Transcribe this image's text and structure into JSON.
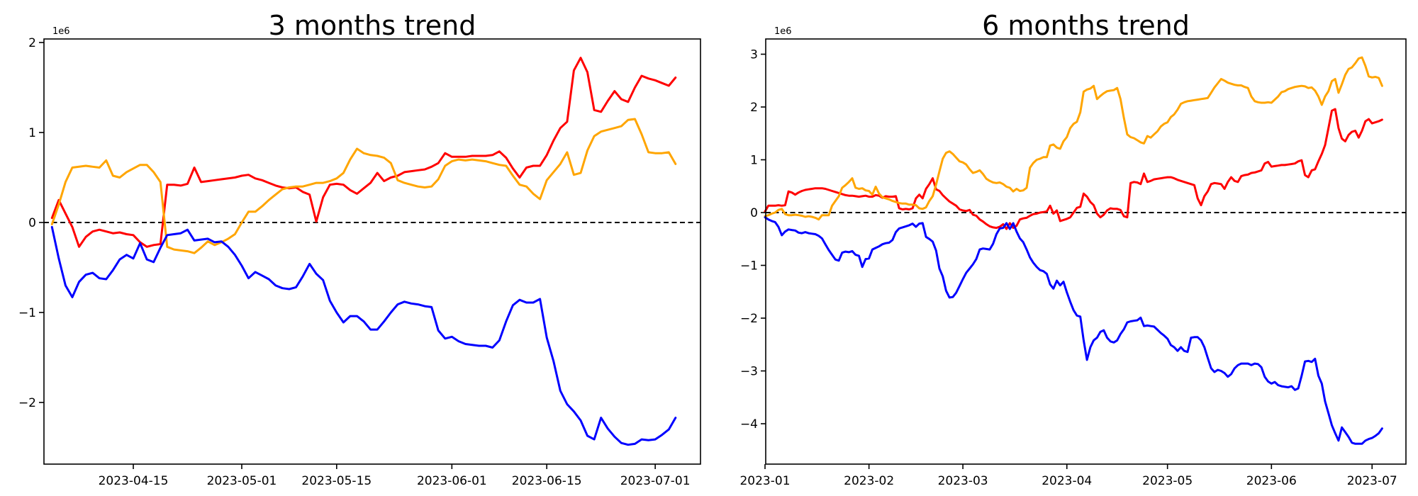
{
  "figure": {
    "background": "#ffffff"
  },
  "chart_data": [
    {
      "type": "line",
      "title": "3 months trend",
      "offset_label": "1e6",
      "x_start_date": "2023-04-03",
      "x_tick_labels": [
        "2023-04-15",
        "2023-05-01",
        "2023-05-15",
        "2023-06-01",
        "2023-06-15",
        "2023-07-01"
      ],
      "x_tick_days": [
        12,
        28,
        42,
        59,
        73,
        89
      ],
      "y_ticks": [
        2,
        1,
        0,
        -1,
        -2
      ],
      "y_tick_labels": [
        "2",
        "1",
        "0",
        "−1",
        "−2"
      ],
      "ylim": [
        -2.68,
        2.04
      ],
      "unit_scale": 1000000,
      "grid": false,
      "zero_line_dashed": true,
      "series": [
        {
          "name": "red",
          "color": "#ff0000",
          "values": [
            0.05,
            0.25,
            0.1,
            -0.05,
            -0.27,
            -0.16,
            -0.1,
            -0.08,
            -0.1,
            -0.12,
            -0.11,
            -0.13,
            -0.14,
            -0.22,
            -0.27,
            -0.25,
            -0.24,
            0.42,
            0.42,
            0.41,
            0.43,
            0.61,
            0.45,
            0.46,
            0.47,
            0.48,
            0.49,
            0.5,
            0.52,
            0.53,
            0.49,
            0.47,
            0.44,
            0.41,
            0.39,
            0.38,
            0.39,
            0.34,
            0.31,
            0.01,
            0.28,
            0.42,
            0.43,
            0.42,
            0.36,
            0.32,
            0.38,
            0.44,
            0.55,
            0.46,
            0.5,
            0.52,
            0.56,
            0.57,
            0.58,
            0.59,
            0.62,
            0.66,
            0.77,
            0.73,
            0.73,
            0.73,
            0.74,
            0.74,
            0.74,
            0.75,
            0.79,
            0.72,
            0.6,
            0.5,
            0.61,
            0.63,
            0.63,
            0.75,
            0.91,
            1.05,
            1.12,
            1.69,
            1.83,
            1.67,
            1.25,
            1.23,
            1.35,
            1.46,
            1.37,
            1.34,
            1.5,
            1.63,
            1.6,
            1.58,
            1.55,
            1.52,
            1.61
          ]
        },
        {
          "name": "orange",
          "color": "#ffa500",
          "values": [
            -0.02,
            0.2,
            0.45,
            0.61,
            0.62,
            0.63,
            0.62,
            0.61,
            0.69,
            0.52,
            0.5,
            0.56,
            0.6,
            0.64,
            0.64,
            0.56,
            0.45,
            -0.27,
            -0.3,
            -0.31,
            -0.32,
            -0.34,
            -0.28,
            -0.21,
            -0.25,
            -0.22,
            -0.18,
            -0.13,
            0.0,
            0.12,
            0.12,
            0.18,
            0.25,
            0.31,
            0.37,
            0.39,
            0.4,
            0.4,
            0.42,
            0.44,
            0.44,
            0.46,
            0.49,
            0.55,
            0.7,
            0.82,
            0.77,
            0.75,
            0.74,
            0.72,
            0.66,
            0.47,
            0.44,
            0.42,
            0.4,
            0.39,
            0.4,
            0.48,
            0.63,
            0.68,
            0.7,
            0.69,
            0.7,
            0.69,
            0.68,
            0.66,
            0.64,
            0.63,
            0.52,
            0.42,
            0.4,
            0.32,
            0.26,
            0.47,
            0.56,
            0.65,
            0.78,
            0.53,
            0.55,
            0.8,
            0.96,
            1.01,
            1.03,
            1.05,
            1.07,
            1.14,
            1.15,
            0.98,
            0.78,
            0.77,
            0.77,
            0.78,
            0.65
          ]
        },
        {
          "name": "blue",
          "color": "#0000ff",
          "values": [
            -0.05,
            -0.4,
            -0.7,
            -0.83,
            -0.66,
            -0.58,
            -0.56,
            -0.62,
            -0.63,
            -0.53,
            -0.41,
            -0.36,
            -0.4,
            -0.23,
            -0.41,
            -0.44,
            -0.28,
            -0.14,
            -0.13,
            -0.12,
            -0.08,
            -0.2,
            -0.19,
            -0.18,
            -0.22,
            -0.21,
            -0.27,
            -0.36,
            -0.48,
            -0.62,
            -0.55,
            -0.59,
            -0.63,
            -0.7,
            -0.73,
            -0.74,
            -0.72,
            -0.6,
            -0.46,
            -0.57,
            -0.64,
            -0.87,
            -1.0,
            -1.11,
            -1.04,
            -1.04,
            -1.1,
            -1.19,
            -1.19,
            -1.1,
            -1.0,
            -0.91,
            -0.88,
            -0.9,
            -0.91,
            -0.93,
            -0.94,
            -1.2,
            -1.29,
            -1.27,
            -1.32,
            -1.35,
            -1.36,
            -1.37,
            -1.37,
            -1.39,
            -1.31,
            -1.1,
            -0.92,
            -0.86,
            -0.89,
            -0.89,
            -0.85,
            -1.28,
            -1.54,
            -1.87,
            -2.02,
            -2.1,
            -2.2,
            -2.37,
            -2.41,
            -2.17,
            -2.29,
            -2.38,
            -2.45,
            -2.47,
            -2.46,
            -2.41,
            -2.42,
            -2.41,
            -2.36,
            -2.3,
            -2.17
          ]
        }
      ]
    },
    {
      "type": "line",
      "title": "6 months trend",
      "offset_label": "1e6",
      "x_start_date": "2023-01-01",
      "x_tick_labels": [
        "2023-01",
        "2023-02",
        "2023-03",
        "2023-04",
        "2023-05",
        "2023-06",
        "2023-07"
      ],
      "x_tick_days": [
        0,
        31,
        59,
        90,
        120,
        151,
        181
      ],
      "y_ticks": [
        3,
        2,
        1,
        0,
        -1,
        -2,
        -3,
        -4
      ],
      "y_tick_labels": [
        "3",
        "2",
        "1",
        "0",
        "−1",
        "−2",
        "−3",
        "−4"
      ],
      "ylim": [
        -4.77,
        3.29
      ],
      "unit_scale": 1000000,
      "grid": false,
      "zero_line_dashed": true,
      "series": [
        {
          "name": "red",
          "color": "#ff0000",
          "values": [
            0.02,
            0.13,
            0.13,
            0.13,
            0.14,
            0.13,
            0.14,
            0.4,
            0.38,
            0.34,
            0.38,
            0.41,
            0.43,
            0.44,
            0.45,
            0.46,
            0.46,
            0.46,
            0.45,
            0.43,
            0.41,
            0.39,
            0.37,
            0.35,
            0.33,
            0.32,
            0.32,
            0.31,
            0.3,
            0.31,
            0.32,
            0.3,
            0.3,
            0.33,
            0.32,
            0.28,
            0.31,
            0.3,
            0.3,
            0.31,
            0.08,
            0.06,
            0.07,
            0.06,
            0.08,
            0.27,
            0.34,
            0.27,
            0.45,
            0.54,
            0.65,
            0.44,
            0.41,
            0.33,
            0.27,
            0.21,
            0.17,
            0.13,
            0.06,
            0.04,
            0.03,
            0.05,
            -0.04,
            -0.06,
            -0.13,
            -0.17,
            -0.22,
            -0.26,
            -0.28,
            -0.29,
            -0.27,
            -0.22,
            -0.31,
            -0.2,
            -0.29,
            -0.25,
            -0.13,
            -0.11,
            -0.1,
            -0.06,
            -0.03,
            -0.02,
            0.0,
            0.01,
            0.02,
            0.13,
            -0.02,
            0.04,
            -0.16,
            -0.14,
            -0.12,
            -0.09,
            0.0,
            0.09,
            0.11,
            0.36,
            0.3,
            0.2,
            0.14,
            -0.02,
            -0.09,
            -0.04,
            0.04,
            0.08,
            0.07,
            0.07,
            0.05,
            -0.07,
            -0.09,
            0.56,
            0.58,
            0.57,
            0.54,
            0.74,
            0.58,
            0.6,
            0.63,
            0.64,
            0.65,
            0.66,
            0.67,
            0.67,
            0.65,
            0.62,
            0.6,
            0.58,
            0.56,
            0.54,
            0.52,
            0.27,
            0.14,
            0.31,
            0.4,
            0.54,
            0.56,
            0.55,
            0.54,
            0.45,
            0.58,
            0.67,
            0.6,
            0.58,
            0.69,
            0.71,
            0.72,
            0.75,
            0.76,
            0.78,
            0.8,
            0.93,
            0.96,
            0.87,
            0.88,
            0.89,
            0.9,
            0.9,
            0.91,
            0.92,
            0.93,
            0.97,
            0.99,
            0.71,
            0.67,
            0.8,
            0.82,
            0.97,
            1.11,
            1.28,
            1.6,
            1.93,
            1.96,
            1.6,
            1.4,
            1.35,
            1.47,
            1.53,
            1.55,
            1.42,
            1.55,
            1.73,
            1.77,
            1.69,
            1.71,
            1.73,
            1.76
          ]
        },
        {
          "name": "orange",
          "color": "#ffa500",
          "values": [
            -0.07,
            -0.05,
            -0.02,
            0.0,
            0.05,
            0.07,
            -0.03,
            -0.05,
            -0.05,
            -0.04,
            -0.05,
            -0.06,
            -0.08,
            -0.07,
            -0.08,
            -0.1,
            -0.13,
            -0.05,
            -0.05,
            -0.05,
            0.13,
            0.22,
            0.31,
            0.47,
            0.52,
            0.58,
            0.65,
            0.47,
            0.45,
            0.46,
            0.42,
            0.41,
            0.34,
            0.49,
            0.36,
            0.29,
            0.27,
            0.25,
            0.22,
            0.2,
            0.18,
            0.17,
            0.17,
            0.15,
            0.15,
            0.14,
            0.08,
            0.07,
            0.1,
            0.22,
            0.31,
            0.53,
            0.78,
            1.02,
            1.13,
            1.16,
            1.11,
            1.04,
            0.97,
            0.95,
            0.91,
            0.82,
            0.75,
            0.77,
            0.8,
            0.73,
            0.64,
            0.6,
            0.57,
            0.56,
            0.57,
            0.54,
            0.49,
            0.47,
            0.4,
            0.45,
            0.41,
            0.42,
            0.47,
            0.85,
            0.94,
            1.0,
            1.02,
            1.05,
            1.05,
            1.27,
            1.29,
            1.23,
            1.21,
            1.35,
            1.43,
            1.6,
            1.68,
            1.72,
            1.9,
            2.29,
            2.33,
            2.35,
            2.4,
            2.15,
            2.21,
            2.26,
            2.3,
            2.31,
            2.32,
            2.36,
            2.15,
            1.79,
            1.48,
            1.43,
            1.41,
            1.37,
            1.33,
            1.31,
            1.45,
            1.42,
            1.48,
            1.54,
            1.63,
            1.68,
            1.71,
            1.81,
            1.86,
            1.95,
            2.06,
            2.09,
            2.11,
            2.12,
            2.13,
            2.14,
            2.15,
            2.16,
            2.17,
            2.27,
            2.37,
            2.45,
            2.53,
            2.5,
            2.46,
            2.44,
            2.42,
            2.41,
            2.41,
            2.38,
            2.36,
            2.2,
            2.11,
            2.09,
            2.08,
            2.08,
            2.09,
            2.08,
            2.14,
            2.2,
            2.28,
            2.3,
            2.34,
            2.36,
            2.38,
            2.39,
            2.4,
            2.39,
            2.36,
            2.37,
            2.31,
            2.2,
            2.04,
            2.2,
            2.3,
            2.49,
            2.53,
            2.27,
            2.43,
            2.61,
            2.72,
            2.75,
            2.83,
            2.92,
            2.94,
            2.78,
            2.58,
            2.56,
            2.57,
            2.55,
            2.4
          ]
        },
        {
          "name": "blue",
          "color": "#0000ff",
          "values": [
            -0.09,
            -0.13,
            -0.16,
            -0.18,
            -0.27,
            -0.43,
            -0.36,
            -0.32,
            -0.33,
            -0.34,
            -0.38,
            -0.39,
            -0.37,
            -0.39,
            -0.4,
            -0.41,
            -0.44,
            -0.49,
            -0.6,
            -0.71,
            -0.8,
            -0.89,
            -0.91,
            -0.76,
            -0.74,
            -0.75,
            -0.73,
            -0.8,
            -0.82,
            -1.03,
            -0.88,
            -0.87,
            -0.7,
            -0.67,
            -0.64,
            -0.6,
            -0.58,
            -0.57,
            -0.52,
            -0.37,
            -0.3,
            -0.28,
            -0.26,
            -0.24,
            -0.21,
            -0.27,
            -0.21,
            -0.2,
            -0.46,
            -0.5,
            -0.55,
            -0.72,
            -1.06,
            -1.21,
            -1.48,
            -1.61,
            -1.6,
            -1.52,
            -1.39,
            -1.26,
            -1.14,
            -1.06,
            -0.98,
            -0.88,
            -0.7,
            -0.68,
            -0.69,
            -0.7,
            -0.59,
            -0.41,
            -0.3,
            -0.29,
            -0.2,
            -0.31,
            -0.2,
            -0.36,
            -0.49,
            -0.56,
            -0.7,
            -0.85,
            -0.95,
            -1.03,
            -1.09,
            -1.11,
            -1.16,
            -1.36,
            -1.44,
            -1.29,
            -1.38,
            -1.31,
            -1.51,
            -1.69,
            -1.85,
            -1.95,
            -1.97,
            -2.42,
            -2.79,
            -2.55,
            -2.42,
            -2.37,
            -2.26,
            -2.23,
            -2.37,
            -2.44,
            -2.46,
            -2.42,
            -2.3,
            -2.21,
            -2.08,
            -2.06,
            -2.05,
            -2.04,
            -1.99,
            -2.15,
            -2.14,
            -2.15,
            -2.16,
            -2.22,
            -2.28,
            -2.33,
            -2.39,
            -2.51,
            -2.55,
            -2.62,
            -2.55,
            -2.62,
            -2.64,
            -2.37,
            -2.36,
            -2.36,
            -2.42,
            -2.55,
            -2.75,
            -2.95,
            -3.02,
            -2.98,
            -3.0,
            -3.04,
            -3.11,
            -3.06,
            -2.95,
            -2.89,
            -2.86,
            -2.86,
            -2.86,
            -2.89,
            -2.86,
            -2.87,
            -2.93,
            -3.11,
            -3.2,
            -3.24,
            -3.21,
            -3.27,
            -3.29,
            -3.3,
            -3.31,
            -3.29,
            -3.36,
            -3.33,
            -3.09,
            -2.82,
            -2.81,
            -2.83,
            -2.77,
            -3.09,
            -3.24,
            -3.58,
            -3.8,
            -4.03,
            -4.18,
            -4.32,
            -4.07,
            -4.16,
            -4.25,
            -4.36,
            -4.38,
            -4.38,
            -4.38,
            -4.32,
            -4.29,
            -4.27,
            -4.23,
            -4.18,
            -4.09
          ]
        }
      ]
    }
  ]
}
